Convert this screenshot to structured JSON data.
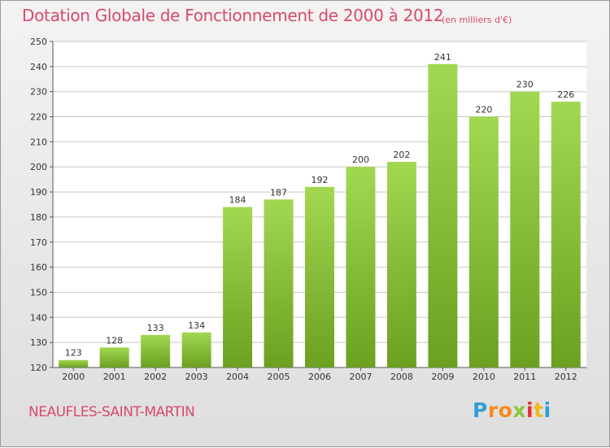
{
  "title": "Dotation Globale de Fonctionnement de 2000 à 2012",
  "subtitle": "(en milliers d'€)",
  "commune": "NEAUFLES-SAINT-MARTIN",
  "logo": {
    "letters": [
      "P",
      "r",
      "o",
      "x",
      "i",
      "t",
      "i"
    ],
    "colors": [
      "#2f9fd8",
      "#f28c1c",
      "#f28c1c",
      "#8cc63f",
      "#e4322b",
      "#f2b81c",
      "#2f9fd8"
    ]
  },
  "colors": {
    "title": "#d94a6b",
    "bar_light": "#a2d851",
    "bar_dark": "#6ba021",
    "grid": "#c8c8c8"
  },
  "chart_data": {
    "type": "bar",
    "categories": [
      "2000",
      "2001",
      "2002",
      "2003",
      "2004",
      "2005",
      "2006",
      "2007",
      "2008",
      "2009",
      "2010",
      "2011",
      "2012"
    ],
    "values": [
      123,
      128,
      133,
      134,
      184,
      187,
      192,
      200,
      202,
      241,
      220,
      230,
      226
    ],
    "ylim": [
      120,
      250
    ],
    "yticks": [
      120,
      130,
      140,
      150,
      160,
      170,
      180,
      190,
      200,
      210,
      220,
      230,
      240,
      250
    ],
    "grid": true,
    "data_labels": true
  }
}
